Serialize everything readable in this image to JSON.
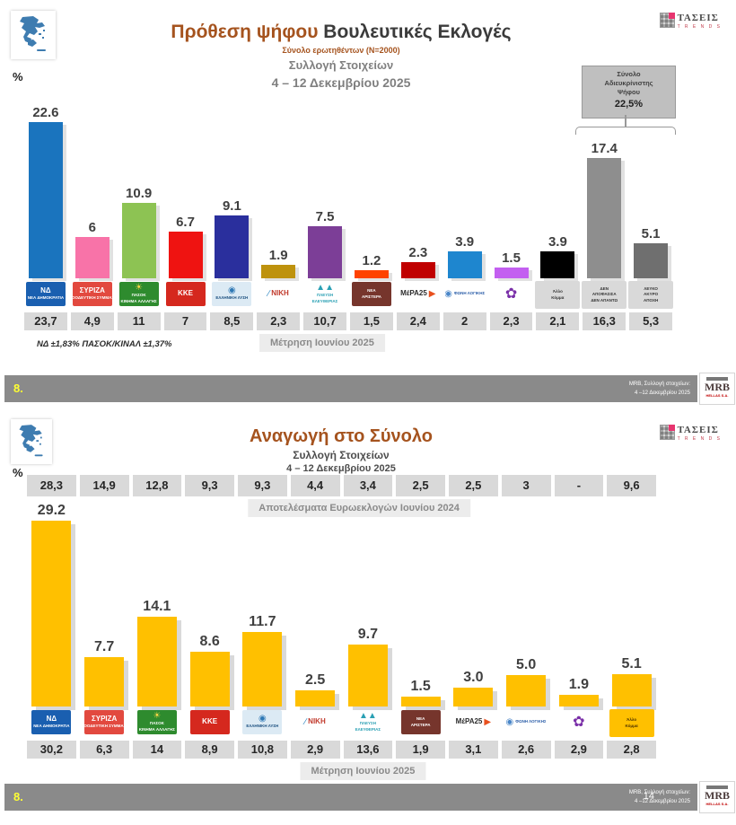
{
  "brand": {
    "name": "ΤΑΣΕΙΣ",
    "sub": "T R E N D S"
  },
  "mrb_logo": {
    "top": "MRB",
    "sub": "HELLAS S.A."
  },
  "slide1": {
    "title_accent": "Πρόθεση ψήφου",
    "title_rest": " Βουλευτικές Εκλογές",
    "subtitle_sample": "Σύνολο ερωτηθέντων (N=2000)",
    "subtitle_collection": "Συλλογή Στοιχείων",
    "subtitle_dates": "4 – 12 Δεκεμβρίου 2025",
    "percent_label": "%",
    "undecided": {
      "line1": "Σύνολο",
      "line2": "Αδιευκρίνιστης",
      "line3": "Ψήφου",
      "value": "22,5%"
    },
    "footnote": "ΝΔ ±1,83% ΠΑΣΟΚ/ΚΙΝΑΛ ±1,37%",
    "prev_label": "Μέτρηση Ιουνίου 2025",
    "footer": {
      "num": "8.",
      "right1": "MRB, Συλλογή στοιχείων:",
      "right2": "4 –12 Δεκεμβρίου 2025"
    }
  },
  "slide2": {
    "title": "Αναγωγή στο Σύνολο",
    "subtitle_collection": "Συλλογή Στοιχείων",
    "subtitle_dates": "4 – 12 Δεκεμβρίου 2025",
    "percent_label": "%",
    "euro_label": "Αποτελέσματα Ευρωεκλογών Ιουνίου 2024",
    "prev_label": "Μέτρηση Ιουνίου 2025",
    "footer": {
      "num": "8.",
      "right1": "MRB, Συλλογή στοιχείων:",
      "right2": "4 –12 Δεκεμβρίου 2025",
      "page": "14"
    }
  },
  "chart_data": [
    {
      "type": "bar",
      "title": "Πρόθεση ψήφου Βουλευτικές Εκλογές",
      "ylabel": "%",
      "ylim": [
        0,
        25
      ],
      "grid": false,
      "prev_series_label": "Μέτρηση Ιουνίου 2025",
      "parties": [
        {
          "key": "nd",
          "name": "ΝΔ - Νέα Δημοκρατία",
          "value": 22.6,
          "display": "22.6",
          "prev": "23,7",
          "color": "#1A74BE",
          "logo": {
            "bg": "#1A5FB0",
            "fg": "#FFFFFF",
            "big": true,
            "lines": [
              "ΝΔ",
              "ΝΕΑ ΔΗΜΟΚΡΑΤΙΑ"
            ]
          }
        },
        {
          "key": "syriza",
          "name": "ΣΥΡΙΖΑ",
          "value": 6,
          "display": "6",
          "prev": "4,9",
          "color": "#F873A8",
          "logo": {
            "bg": "#E2493F",
            "fg": "#FFFFFF",
            "big": true,
            "lines": [
              "ΣΥΡΙΖΑ",
              "ΠΡΟΟΔΕΥΤΙΚΗ ΣΥΜΜΑΧΙΑ"
            ]
          }
        },
        {
          "key": "pasok",
          "name": "ΠΑΣΟΚ",
          "value": 10.9,
          "display": "10.9",
          "prev": "11",
          "color": "#8DC353",
          "logo": {
            "bg": "#2E8B2E",
            "fg": "#FFFFFF",
            "icon": "☀",
            "icon_color": "#F5D547",
            "lines": [
              "ΠΑΣΟΚ",
              "ΚΙΝΗΜΑ ΑΛΛΑΓΗΣ"
            ]
          }
        },
        {
          "key": "kke",
          "name": "ΚΚΕ",
          "value": 6.7,
          "display": "6.7",
          "prev": "7",
          "color": "#EF1311",
          "logo": {
            "bg": "#D5281E",
            "fg": "#FFFFFF",
            "big": true,
            "lines": [
              "ΚΚΕ"
            ]
          }
        },
        {
          "key": "elliniki-lysi",
          "name": "Ελληνική Λύση",
          "value": 9.1,
          "display": "9.1",
          "prev": "8,5",
          "color": "#2A2F9D",
          "logo": {
            "bg": "#DCEAF4",
            "fg": "#1A4E7E",
            "icon": "◉",
            "icon_color": "#3079B5",
            "lines": [
              "ΕΛΛΗΝΙΚΗ ΛΥΣΗ"
            ]
          }
        },
        {
          "key": "niki",
          "name": "ΝΙΚΗ",
          "value": 1.9,
          "display": "1.9",
          "prev": "2,3",
          "color": "#BE920D",
          "logo": {
            "bg": "#FFFFFF",
            "fg": "#C0392B",
            "row": true,
            "icon": "∕",
            "icon_color": "#2E86C1",
            "big": true,
            "lines": [
              "ΝΙΚΗ"
            ]
          }
        },
        {
          "key": "plefsi-eleftherias",
          "name": "Πλεύση Ελευθερίας",
          "value": 7.5,
          "display": "7.5",
          "prev": "10,7",
          "color": "#7C3E97",
          "logo": {
            "bg": "#FFFFFF",
            "fg": "#2AA0B4",
            "icon": "▲▲",
            "icon_color": "#2AA0B4",
            "lines": [
              "ΠΛΕΥΣΗ",
              "ΕΛΕΥΘΕΡΙΑΣ"
            ]
          }
        },
        {
          "key": "nea-aristera",
          "name": "Νέα Αριστερά",
          "value": 1.2,
          "display": "1.2",
          "prev": "1,5",
          "color": "#FF4200",
          "logo": {
            "bg": "#76352C",
            "fg": "#FFFFFF",
            "lines": [
              "ΝΕΑ",
              "ΑΡΙΣΤΕΡΑ"
            ]
          }
        },
        {
          "key": "mera25",
          "name": "ΜέΡΑ25",
          "value": 2.3,
          "display": "2.3",
          "prev": "2,4",
          "color": "#C00000",
          "logo": {
            "bg": "#FFFFFF",
            "fg": "#2C2C2C",
            "row": true,
            "big": true,
            "lines": [
              "ΜέΡΑ25"
            ],
            "suffix": "▶",
            "suffix_color": "#E8501E"
          }
        },
        {
          "key": "foni-logikis",
          "name": "Φωνή Λογικής",
          "value": 3.9,
          "display": "3.9",
          "prev": "2",
          "color": "#1E86CF",
          "logo": {
            "bg": "#FFFFFF",
            "fg": "#2A5DA8",
            "row": true,
            "icon": "◉",
            "icon_color": "#4A86C8",
            "lines": [
              "ΦΩΝΗ ΛΟΓΙΚΗΣ"
            ]
          }
        },
        {
          "key": "kinima-dimokratias",
          "name": "Κίνημα Δημοκρατίας",
          "value": 1.5,
          "display": "1.5",
          "prev": "2,3",
          "color": "#C35FF0",
          "logo": {
            "bg": "#FFFFFF",
            "fg": "#7A2FA8",
            "icon": "✿",
            "icon_color": "#7A2FA8",
            "solo": true,
            "lines": []
          }
        },
        {
          "key": "allo-komma",
          "name": "Άλλο Κόμμα",
          "value": 3.9,
          "display": "3.9",
          "prev": "2,1",
          "color": "#000000",
          "logo": {
            "bg": "#D9D9D9",
            "fg": "#333333",
            "wide": true,
            "lines": [
              "Άλλο",
              "Κόμμα"
            ]
          }
        },
        {
          "key": "den-apofasisa",
          "name": "ΔΕΝ ΑΠΟΦΑΣΙΣΑ / ΔΕΝ ΑΠΑΝΤΩ",
          "value": 17.4,
          "display": "17.4",
          "prev": "16,3",
          "color": "#8E8E8E",
          "logo": {
            "bg": "#D9D9D9",
            "fg": "#333333",
            "wide": true,
            "lines": [
              "ΔΕΝ",
              "ΑΠΟΦΑΣΙΣΑ",
              "ΔΕΝ ΑΠΑΝΤΩ"
            ]
          }
        },
        {
          "key": "lefko-akyro-apochi",
          "name": "ΛΕΥΚΟ / ΑΚΥΡΟ / ΑΠΟΧΗ",
          "value": 5.1,
          "display": "5.1",
          "prev": "5,3",
          "color": "#6F6F6F",
          "logo": {
            "bg": "#D9D9D9",
            "fg": "#333333",
            "wide": true,
            "lines": [
              "ΛΕΥΚΟ",
              "ΑΚΥΡΟ",
              "ΑΠΟΧΗ"
            ]
          }
        }
      ]
    },
    {
      "type": "bar",
      "title": "Αναγωγή στο Σύνολο",
      "ylabel": "%",
      "ylim": [
        0,
        32
      ],
      "grid": false,
      "bar_color": "#FFC000",
      "euro_label": "Αποτελέσματα Ευρωεκλογών Ιουνίου 2024",
      "euro_2024": [
        "28,3",
        "14,9",
        "12,8",
        "9,3",
        "9,3",
        "4,4",
        "3,4",
        "2,5",
        "2,5",
        "3",
        "-",
        "9,6"
      ],
      "prev_series_label": "Μέτρηση Ιουνίου 2025",
      "parties": [
        {
          "key": "nd",
          "name": "ΝΔ - Νέα Δημοκρατία",
          "value": 29.2,
          "display": "29.2",
          "prev": "30,2",
          "color": "#FFC000",
          "logo": {
            "bg": "#1A5FB0",
            "fg": "#FFFFFF",
            "big": true,
            "lines": [
              "ΝΔ",
              "ΝΕΑ ΔΗΜΟΚΡΑΤΙΑ"
            ]
          }
        },
        {
          "key": "syriza",
          "name": "ΣΥΡΙΖΑ",
          "value": 7.7,
          "display": "7.7",
          "prev": "6,3",
          "color": "#FFC000",
          "logo": {
            "bg": "#E2493F",
            "fg": "#FFFFFF",
            "big": true,
            "lines": [
              "ΣΥΡΙΖΑ",
              "ΠΡΟΟΔΕΥΤΙΚΗ ΣΥΜΜΑΧΙΑ"
            ]
          }
        },
        {
          "key": "pasok",
          "name": "ΠΑΣΟΚ",
          "value": 14.1,
          "display": "14.1",
          "prev": "14",
          "color": "#FFC000",
          "logo": {
            "bg": "#2E8B2E",
            "fg": "#FFFFFF",
            "icon": "☀",
            "icon_color": "#F5D547",
            "lines": [
              "ΠΑΣΟΚ",
              "ΚΙΝΗΜΑ ΑΛΛΑΓΗΣ"
            ]
          }
        },
        {
          "key": "kke",
          "name": "ΚΚΕ",
          "value": 8.6,
          "display": "8.6",
          "prev": "8,9",
          "color": "#FFC000",
          "logo": {
            "bg": "#D5281E",
            "fg": "#FFFFFF",
            "big": true,
            "lines": [
              "ΚΚΕ"
            ]
          }
        },
        {
          "key": "elliniki-lysi",
          "name": "Ελληνική Λύση",
          "value": 11.7,
          "display": "11.7",
          "prev": "10,8",
          "color": "#FFC000",
          "logo": {
            "bg": "#DCEAF4",
            "fg": "#1A4E7E",
            "icon": "◉",
            "icon_color": "#3079B5",
            "lines": [
              "ΕΛΛΗΝΙΚΗ ΛΥΣΗ"
            ]
          }
        },
        {
          "key": "niki",
          "name": "ΝΙΚΗ",
          "value": 2.5,
          "display": "2.5",
          "prev": "2,9",
          "color": "#FFC000",
          "logo": {
            "bg": "#FFFFFF",
            "fg": "#C0392B",
            "row": true,
            "icon": "∕",
            "icon_color": "#2E86C1",
            "big": true,
            "lines": [
              "ΝΙΚΗ"
            ]
          }
        },
        {
          "key": "plefsi-eleftherias",
          "name": "Πλεύση Ελευθερίας",
          "value": 9.7,
          "display": "9.7",
          "prev": "13,6",
          "color": "#FFC000",
          "logo": {
            "bg": "#FFFFFF",
            "fg": "#2AA0B4",
            "icon": "▲▲",
            "icon_color": "#2AA0B4",
            "lines": [
              "ΠΛΕΥΣΗ",
              "ΕΛΕΥΘΕΡΙΑΣ"
            ]
          }
        },
        {
          "key": "nea-aristera",
          "name": "Νέα Αριστερά",
          "value": 1.5,
          "display": "1.5",
          "prev": "1,9",
          "color": "#FFC000",
          "logo": {
            "bg": "#76352C",
            "fg": "#FFFFFF",
            "lines": [
              "ΝΕΑ",
              "ΑΡΙΣΤΕΡΑ"
            ]
          }
        },
        {
          "key": "mera25",
          "name": "ΜέΡΑ25",
          "value": 3.0,
          "display": "3.0",
          "prev": "3,1",
          "color": "#FFC000",
          "logo": {
            "bg": "#FFFFFF",
            "fg": "#2C2C2C",
            "row": true,
            "big": true,
            "lines": [
              "ΜέΡΑ25"
            ],
            "suffix": "▶",
            "suffix_color": "#E8501E"
          }
        },
        {
          "key": "foni-logikis",
          "name": "Φωνή Λογικής",
          "value": 5.0,
          "display": "5.0",
          "prev": "2,6",
          "color": "#FFC000",
          "logo": {
            "bg": "#FFFFFF",
            "fg": "#2A5DA8",
            "row": true,
            "icon": "◉",
            "icon_color": "#4A86C8",
            "lines": [
              "ΦΩΝΗ ΛΟΓΙΚΗΣ"
            ]
          }
        },
        {
          "key": "kinima-dimokratias",
          "name": "Κίνημα Δημοκρατίας",
          "value": 1.9,
          "display": "1.9",
          "prev": "2,9",
          "color": "#FFC000",
          "logo": {
            "bg": "#FFFFFF",
            "fg": "#7A2FA8",
            "icon": "✿",
            "icon_color": "#7A2FA8",
            "solo": true,
            "lines": []
          }
        },
        {
          "key": "allo-komma",
          "name": "Άλλο Κόμμα",
          "value": 5.1,
          "display": "5.1",
          "prev": "2,8",
          "color": "#FFC000",
          "logo": {
            "bg": "#FFC000",
            "fg": "#4A3000",
            "wide": true,
            "lines": [
              "Άλλο",
              "Κόμμα"
            ]
          }
        }
      ]
    }
  ]
}
